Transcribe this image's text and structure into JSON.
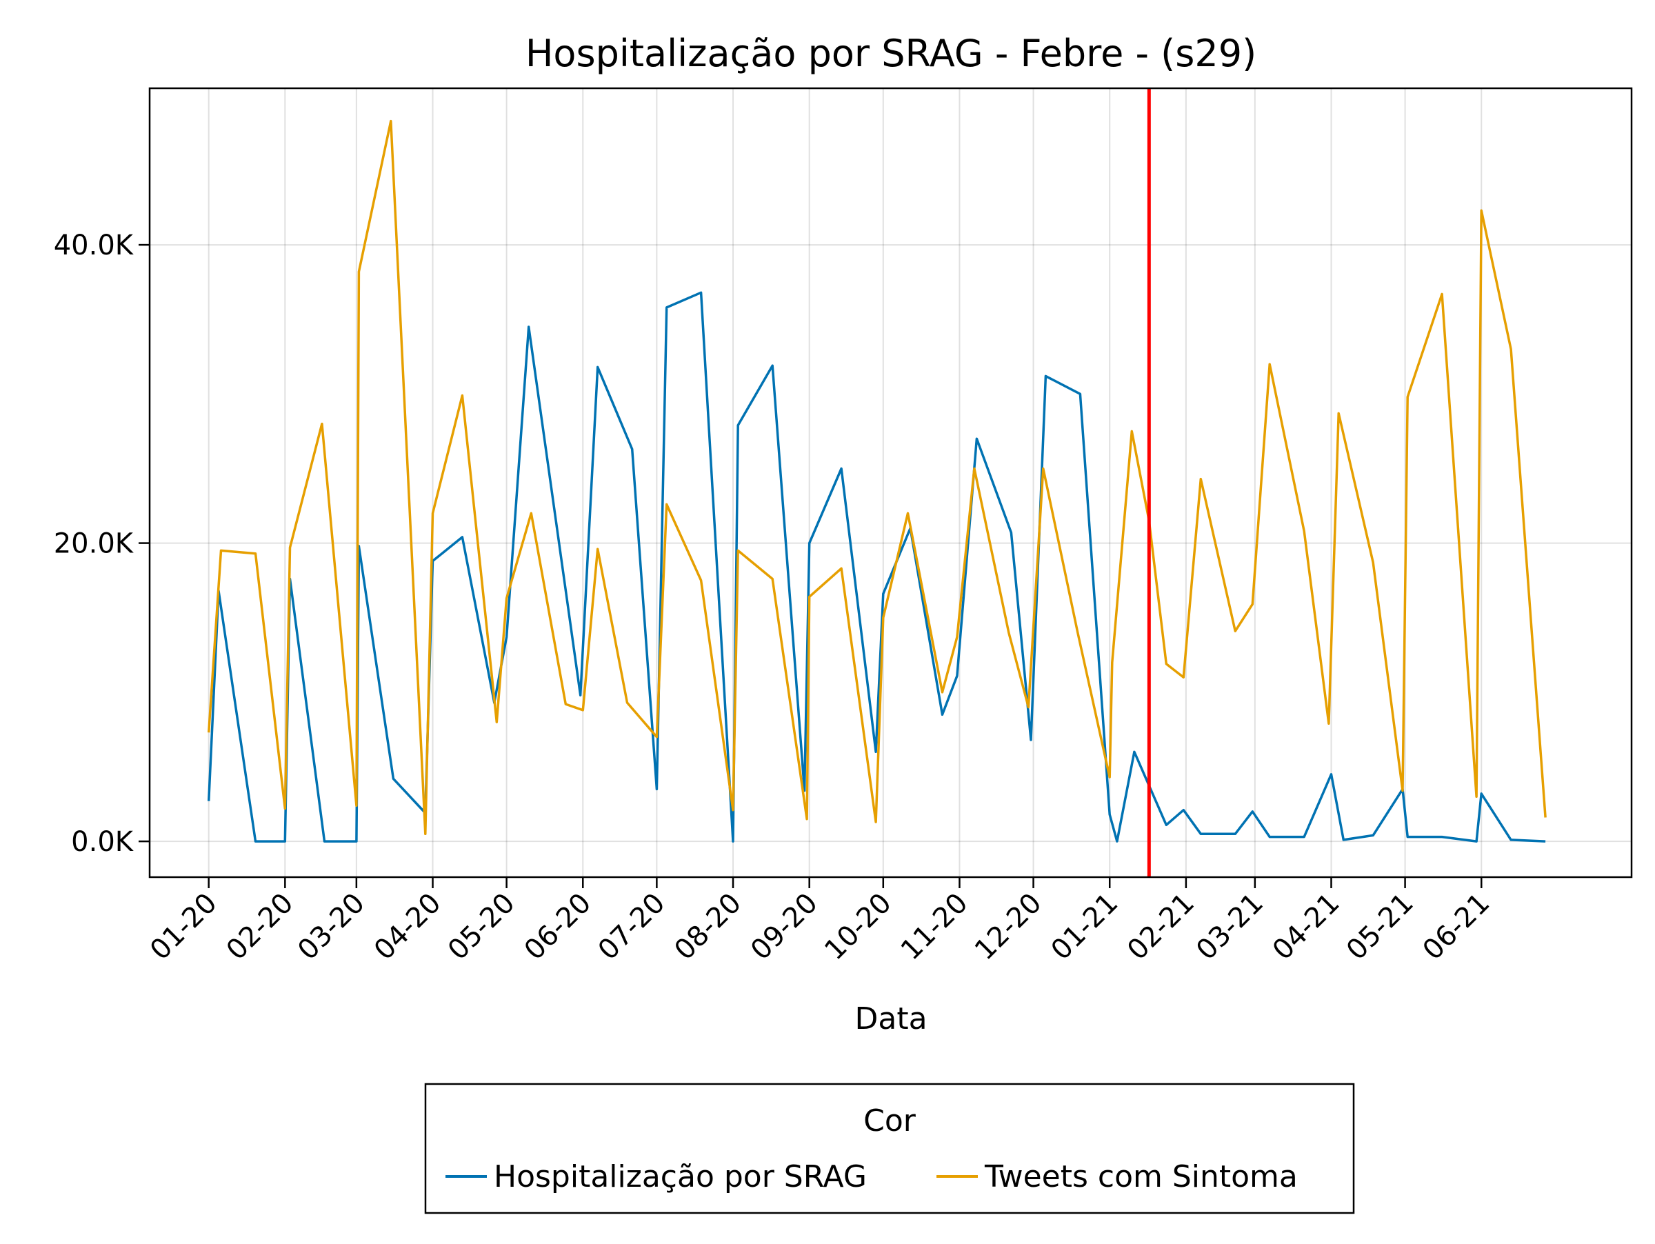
{
  "chart_data": {
    "type": "line",
    "title": "Hospitalização por SRAG - Febre - (s29)",
    "xlabel": "Data",
    "ylabel": "",
    "x_ticks": [
      "01-20",
      "02-20",
      "03-20",
      "04-20",
      "05-20",
      "06-20",
      "07-20",
      "08-20",
      "09-20",
      "10-20",
      "11-20",
      "12-20",
      "01-21",
      "02-21",
      "03-21",
      "04-21",
      "05-21",
      "06-21"
    ],
    "y_ticks": [
      "0.0K",
      "20.0K",
      "40.0K"
    ],
    "y_tick_values": [
      0,
      20000,
      40000
    ],
    "ylim": [
      -2400,
      50500
    ],
    "xlim": [
      "2019-12-08",
      "2021-08-01"
    ],
    "grid": true,
    "vertical_marker": {
      "x": "2021-01-17",
      "color": "#ff0000"
    },
    "legend": {
      "title": "Cor",
      "position": "bottom"
    },
    "series": [
      {
        "name": "Hospitalização por SRAG",
        "color": "#0072b2",
        "points": [
          [
            "2020-01-01",
            2700
          ],
          [
            "2020-01-05",
            16800
          ],
          [
            "2020-01-20",
            0
          ],
          [
            "2020-02-01",
            0
          ],
          [
            "2020-02-03",
            17600
          ],
          [
            "2020-02-17",
            0
          ],
          [
            "2020-03-01",
            0
          ],
          [
            "2020-03-02",
            19800
          ],
          [
            "2020-03-16",
            4200
          ],
          [
            "2020-03-29",
            1900
          ],
          [
            "2020-04-01",
            18800
          ],
          [
            "2020-04-13",
            20400
          ],
          [
            "2020-04-26",
            9300
          ],
          [
            "2020-05-01",
            13700
          ],
          [
            "2020-05-10",
            34500
          ],
          [
            "2020-05-31",
            9800
          ],
          [
            "2020-06-07",
            31800
          ],
          [
            "2020-06-21",
            26300
          ],
          [
            "2020-07-01",
            3500
          ],
          [
            "2020-07-05",
            35800
          ],
          [
            "2020-07-19",
            36800
          ],
          [
            "2020-08-01",
            0
          ],
          [
            "2020-08-03",
            27900
          ],
          [
            "2020-08-17",
            31900
          ],
          [
            "2020-08-30",
            3400
          ],
          [
            "2020-09-01",
            20000
          ],
          [
            "2020-09-14",
            25000
          ],
          [
            "2020-09-28",
            6000
          ],
          [
            "2020-10-01",
            16600
          ],
          [
            "2020-10-12",
            21000
          ],
          [
            "2020-10-25",
            8500
          ],
          [
            "2020-10-31",
            11100
          ],
          [
            "2020-11-08",
            27000
          ],
          [
            "2020-11-22",
            20700
          ],
          [
            "2020-11-30",
            6800
          ],
          [
            "2020-12-06",
            31200
          ],
          [
            "2020-12-20",
            30000
          ],
          [
            "2021-01-01",
            1800
          ],
          [
            "2021-01-04",
            0
          ],
          [
            "2021-01-11",
            6000
          ],
          [
            "2021-01-24",
            1100
          ],
          [
            "2021-01-31",
            2100
          ],
          [
            "2021-02-07",
            500
          ],
          [
            "2021-02-21",
            500
          ],
          [
            "2021-02-28",
            2000
          ],
          [
            "2021-03-07",
            300
          ],
          [
            "2021-03-21",
            300
          ],
          [
            "2021-04-01",
            4500
          ],
          [
            "2021-04-06",
            100
          ],
          [
            "2021-04-18",
            400
          ],
          [
            "2021-04-30",
            3500
          ],
          [
            "2021-05-02",
            300
          ],
          [
            "2021-05-16",
            300
          ],
          [
            "2021-05-30",
            0
          ],
          [
            "2021-06-01",
            3200
          ],
          [
            "2021-06-13",
            100
          ],
          [
            "2021-06-27",
            0
          ]
        ]
      },
      {
        "name": "Tweets com Sintoma",
        "color": "#e69f00",
        "points": [
          [
            "2020-01-01",
            7300
          ],
          [
            "2020-01-06",
            19500
          ],
          [
            "2020-01-20",
            19300
          ],
          [
            "2020-02-01",
            2200
          ],
          [
            "2020-02-03",
            19700
          ],
          [
            "2020-02-16",
            28000
          ],
          [
            "2020-03-01",
            2400
          ],
          [
            "2020-03-02",
            38200
          ],
          [
            "2020-03-15",
            48300
          ],
          [
            "2020-03-29",
            500
          ],
          [
            "2020-04-01",
            22000
          ],
          [
            "2020-04-13",
            29900
          ],
          [
            "2020-04-27",
            8000
          ],
          [
            "2020-05-01",
            16300
          ],
          [
            "2020-05-11",
            22000
          ],
          [
            "2020-05-25",
            9200
          ],
          [
            "2020-06-01",
            8800
          ],
          [
            "2020-06-07",
            19600
          ],
          [
            "2020-06-19",
            9300
          ],
          [
            "2020-07-01",
            7000
          ],
          [
            "2020-07-05",
            22600
          ],
          [
            "2020-07-19",
            17500
          ],
          [
            "2020-08-01",
            2100
          ],
          [
            "2020-08-03",
            19500
          ],
          [
            "2020-08-17",
            17600
          ],
          [
            "2020-08-31",
            1500
          ],
          [
            "2020-09-01",
            16400
          ],
          [
            "2020-09-14",
            18300
          ],
          [
            "2020-09-28",
            1300
          ],
          [
            "2020-10-01",
            15000
          ],
          [
            "2020-10-11",
            22000
          ],
          [
            "2020-10-25",
            10000
          ],
          [
            "2020-10-31",
            13700
          ],
          [
            "2020-11-07",
            25000
          ],
          [
            "2020-11-21",
            14000
          ],
          [
            "2020-11-29",
            9000
          ],
          [
            "2020-12-05",
            25000
          ],
          [
            "2020-12-19",
            14000
          ],
          [
            "2021-01-01",
            4300
          ],
          [
            "2021-01-02",
            12000
          ],
          [
            "2021-01-10",
            27500
          ],
          [
            "2021-01-17",
            21500
          ],
          [
            "2021-01-24",
            11900
          ],
          [
            "2021-01-31",
            11000
          ],
          [
            "2021-02-07",
            24300
          ],
          [
            "2021-02-21",
            14100
          ],
          [
            "2021-02-28",
            15900
          ],
          [
            "2021-03-07",
            32000
          ],
          [
            "2021-03-21",
            20800
          ],
          [
            "2021-03-31",
            7900
          ],
          [
            "2021-04-04",
            28700
          ],
          [
            "2021-04-18",
            18700
          ],
          [
            "2021-04-30",
            3400
          ],
          [
            "2021-05-02",
            29800
          ],
          [
            "2021-05-16",
            36700
          ],
          [
            "2021-05-30",
            3000
          ],
          [
            "2021-06-01",
            42300
          ],
          [
            "2021-06-13",
            33000
          ],
          [
            "2021-06-27",
            1600
          ]
        ]
      }
    ]
  }
}
